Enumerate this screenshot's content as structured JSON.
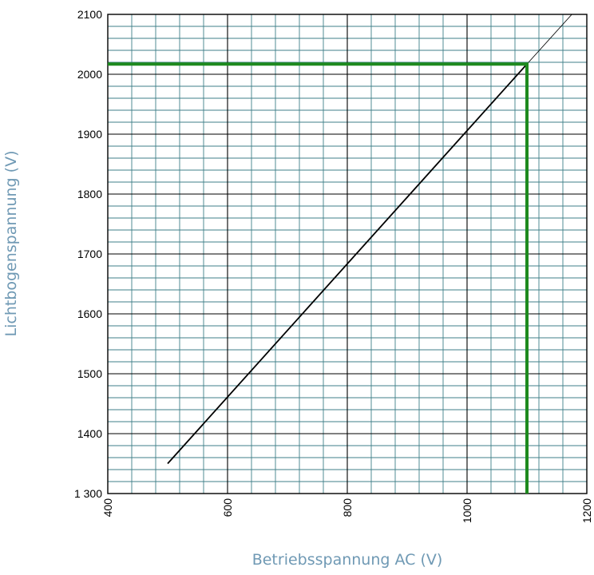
{
  "chart_data": {
    "type": "line",
    "xlabel": "Betriebsspannung AC (V)",
    "ylabel": "Lichtbogenspannung (V)",
    "xlim": [
      400,
      1200
    ],
    "ylim": [
      1300,
      2100
    ],
    "x_ticks": [
      "400",
      "600",
      "800",
      "1000",
      "1200"
    ],
    "y_ticks": [
      "1 300",
      "1400",
      "1500",
      "1600",
      "1700",
      "1800",
      "1900",
      "2000",
      "2100"
    ],
    "grid": true,
    "series": [
      {
        "style": "thick",
        "color": "#000000",
        "x": [
          500,
          1100
        ],
        "y": [
          1350,
          2017
        ]
      },
      {
        "style": "thin",
        "color": "#000000",
        "x": [
          1100,
          1175
        ],
        "y": [
          2017,
          2100
        ]
      }
    ],
    "annotations": [
      {
        "type": "threshold",
        "color": "#1e8a1e",
        "x": 1100,
        "y": 2017
      }
    ]
  },
  "colors": {
    "grid_minor": "#3f7f88",
    "grid_major": "#000000",
    "highlight": "#1e8a1e",
    "label": "#6f99b4"
  }
}
